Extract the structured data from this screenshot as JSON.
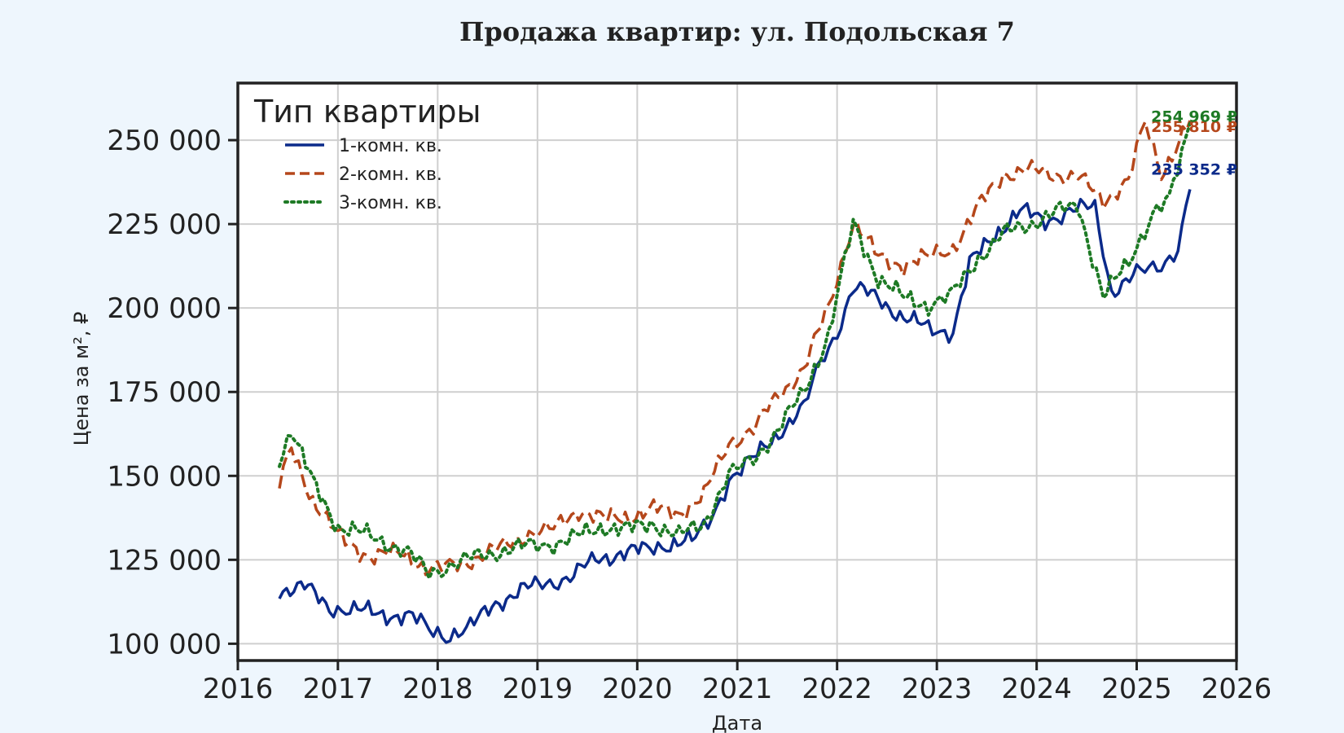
{
  "chart_data": {
    "type": "line",
    "title": "Продажа квартир: ул. Подольская 7",
    "xlabel": "Дата",
    "ylabel": "Цена за м², ₽",
    "xlim": [
      "2016-01-01",
      "2026-01-01"
    ],
    "ylim": [
      95000,
      267000
    ],
    "x_ticks": [
      "2016",
      "2017",
      "2018",
      "2019",
      "2020",
      "2021",
      "2022",
      "2023",
      "2024",
      "2025",
      "2026"
    ],
    "y_ticks": [
      100000,
      125000,
      150000,
      175000,
      200000,
      225000,
      250000
    ],
    "y_tick_labels": [
      "100 000",
      "125 000",
      "150 000",
      "175 000",
      "200 000",
      "225 000",
      "250 000"
    ],
    "grid": true,
    "legend": {
      "title": "Тип квартиры",
      "position": "top-left"
    },
    "series": [
      {
        "name": "1-комн. кв.",
        "color": "#0b2a8a",
        "dash": "solid",
        "end_label": "235 352 ₽",
        "points": [
          [
            "2016-06-01",
            116000
          ],
          [
            "2016-09-01",
            117000
          ],
          [
            "2016-12-01",
            111000
          ],
          [
            "2017-03-01",
            110000
          ],
          [
            "2017-06-01",
            109000
          ],
          [
            "2017-10-01",
            108000
          ],
          [
            "2017-12-01",
            104000
          ],
          [
            "2018-02-01",
            102500
          ],
          [
            "2018-05-01",
            105000
          ],
          [
            "2018-08-01",
            112000
          ],
          [
            "2018-11-01",
            116000
          ],
          [
            "2019-02-01",
            118000
          ],
          [
            "2019-05-01",
            120000
          ],
          [
            "2019-08-01",
            125000
          ],
          [
            "2019-11-01",
            127000
          ],
          [
            "2020-02-01",
            128000
          ],
          [
            "2020-05-01",
            130000
          ],
          [
            "2020-08-01",
            131000
          ],
          [
            "2020-10-01",
            138000
          ],
          [
            "2020-12-01",
            149000
          ],
          [
            "2021-03-01",
            155000
          ],
          [
            "2021-06-01",
            163000
          ],
          [
            "2021-09-01",
            170000
          ],
          [
            "2021-11-01",
            184000
          ],
          [
            "2022-01-01",
            193000
          ],
          [
            "2022-03-01",
            206000
          ],
          [
            "2022-06-01",
            203000
          ],
          [
            "2022-09-01",
            197000
          ],
          [
            "2022-12-01",
            194000
          ],
          [
            "2023-03-01",
            193000
          ],
          [
            "2023-05-01",
            213000
          ],
          [
            "2023-08-01",
            222000
          ],
          [
            "2023-11-01",
            229000
          ],
          [
            "2024-02-01",
            226000
          ],
          [
            "2024-05-01",
            229000
          ],
          [
            "2024-08-01",
            230000
          ],
          [
            "2024-10-01",
            205000
          ],
          [
            "2025-01-01",
            210000
          ],
          [
            "2025-04-01",
            213000
          ],
          [
            "2025-06-01",
            218000
          ],
          [
            "2025-07-15",
            235352
          ]
        ]
      },
      {
        "name": "2-комн. кв.",
        "color": "#b5471b",
        "dash": "dashed",
        "end_label": "255 810 ₽",
        "points": [
          [
            "2016-06-01",
            147000
          ],
          [
            "2016-07-15",
            158000
          ],
          [
            "2016-10-01",
            143000
          ],
          [
            "2017-01-01",
            132000
          ],
          [
            "2017-05-01",
            126000
          ],
          [
            "2017-09-01",
            127000
          ],
          [
            "2017-12-01",
            122000
          ],
          [
            "2018-03-01",
            123000
          ],
          [
            "2018-06-01",
            126000
          ],
          [
            "2018-09-01",
            129000
          ],
          [
            "2018-12-01",
            133000
          ],
          [
            "2019-03-01",
            134000
          ],
          [
            "2019-06-01",
            140000
          ],
          [
            "2019-09-01",
            137000
          ],
          [
            "2019-12-01",
            138000
          ],
          [
            "2020-03-01",
            140000
          ],
          [
            "2020-06-01",
            139000
          ],
          [
            "2020-09-01",
            144000
          ],
          [
            "2020-12-01",
            160000
          ],
          [
            "2021-03-01",
            164000
          ],
          [
            "2021-06-01",
            174000
          ],
          [
            "2021-09-01",
            182000
          ],
          [
            "2021-12-01",
            200000
          ],
          [
            "2022-03-01",
            226000
          ],
          [
            "2022-06-01",
            215000
          ],
          [
            "2022-09-01",
            213000
          ],
          [
            "2022-12-01",
            215000
          ],
          [
            "2023-03-01",
            218000
          ],
          [
            "2023-06-01",
            230000
          ],
          [
            "2023-09-01",
            240000
          ],
          [
            "2023-12-01",
            241000
          ],
          [
            "2024-03-01",
            240000
          ],
          [
            "2024-06-01",
            239000
          ],
          [
            "2024-09-01",
            232000
          ],
          [
            "2024-12-01",
            238000
          ],
          [
            "2025-02-01",
            255000
          ],
          [
            "2025-04-01",
            240000
          ],
          [
            "2025-07-15",
            255810
          ]
        ]
      },
      {
        "name": "3-комн. кв.",
        "color": "#1e7a25",
        "dash": "dotted",
        "end_label": "254 969 ₽",
        "points": [
          [
            "2016-06-01",
            155000
          ],
          [
            "2016-07-15",
            164000
          ],
          [
            "2016-10-01",
            148000
          ],
          [
            "2017-01-01",
            135000
          ],
          [
            "2017-05-01",
            132000
          ],
          [
            "2017-09-01",
            128000
          ],
          [
            "2017-12-01",
            121000
          ],
          [
            "2018-03-01",
            124000
          ],
          [
            "2018-06-01",
            126000
          ],
          [
            "2018-09-01",
            128000
          ],
          [
            "2018-12-01",
            129000
          ],
          [
            "2019-03-01",
            130000
          ],
          [
            "2019-06-01",
            132000
          ],
          [
            "2019-09-01",
            135000
          ],
          [
            "2019-12-01",
            134000
          ],
          [
            "2020-03-01",
            136000
          ],
          [
            "2020-06-01",
            132000
          ],
          [
            "2020-09-01",
            136000
          ],
          [
            "2020-12-01",
            150000
          ],
          [
            "2021-03-01",
            155000
          ],
          [
            "2021-06-01",
            164000
          ],
          [
            "2021-09-01",
            175000
          ],
          [
            "2021-12-01",
            192000
          ],
          [
            "2022-03-01",
            225000
          ],
          [
            "2022-06-01",
            209000
          ],
          [
            "2022-09-01",
            203000
          ],
          [
            "2022-12-01",
            201000
          ],
          [
            "2023-03-01",
            204000
          ],
          [
            "2023-06-01",
            215000
          ],
          [
            "2023-09-01",
            222000
          ],
          [
            "2023-12-01",
            225000
          ],
          [
            "2024-03-01",
            228000
          ],
          [
            "2024-06-01",
            231000
          ],
          [
            "2024-09-01",
            203000
          ],
          [
            "2024-12-01",
            214000
          ],
          [
            "2025-03-01",
            228000
          ],
          [
            "2025-05-01",
            232000
          ],
          [
            "2025-07-15",
            254969
          ]
        ]
      }
    ]
  }
}
